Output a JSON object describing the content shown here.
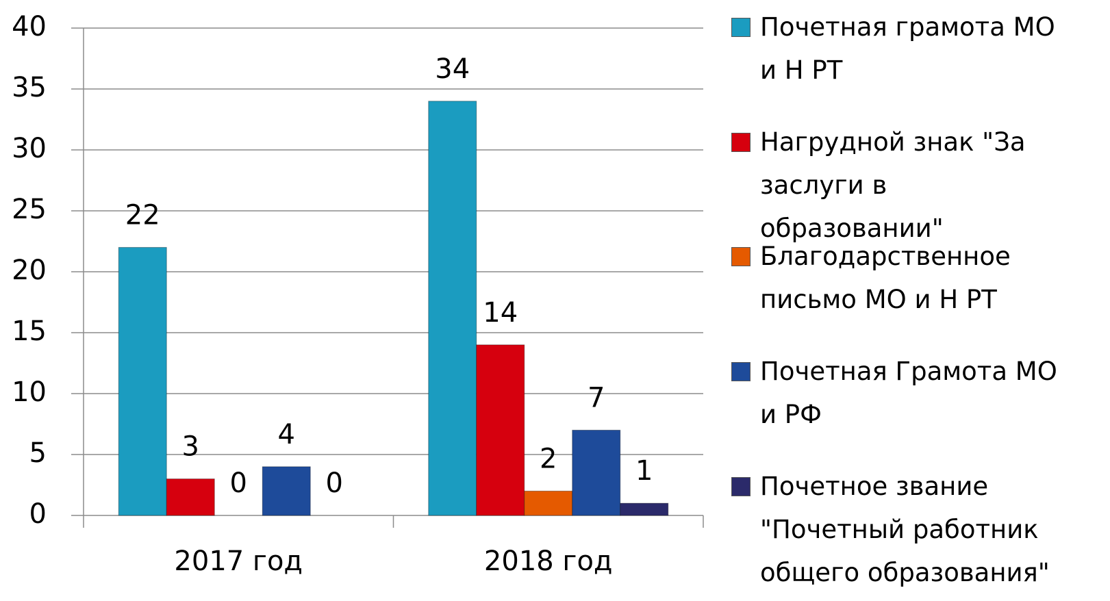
{
  "chart_data": {
    "type": "bar",
    "categories": [
      "2017 год",
      "2018 год"
    ],
    "series": [
      {
        "name": "Почетная грамота МО и Н РТ",
        "color": "#1b9cc0",
        "values": [
          22,
          34
        ]
      },
      {
        "name": "Нагрудной знак \"За заслуги в образовании\"",
        "color": "#d6000e",
        "values": [
          3,
          14
        ]
      },
      {
        "name": "Благодарственное письмо МО и Н РТ",
        "color": "#e55a00",
        "values": [
          0,
          2
        ]
      },
      {
        "name": "Почетная Грамота МО и РФ",
        "color": "#1e4b9a",
        "values": [
          4,
          7
        ]
      },
      {
        "name": "Почетное звание \"Почетный работник общего образования\"",
        "color": "#2b2a6a",
        "values": [
          0,
          1
        ]
      }
    ],
    "ylim": [
      0,
      40
    ],
    "yticks": [
      0,
      5,
      10,
      15,
      20,
      25,
      30,
      35,
      40
    ],
    "grid": true,
    "legend": "right"
  }
}
